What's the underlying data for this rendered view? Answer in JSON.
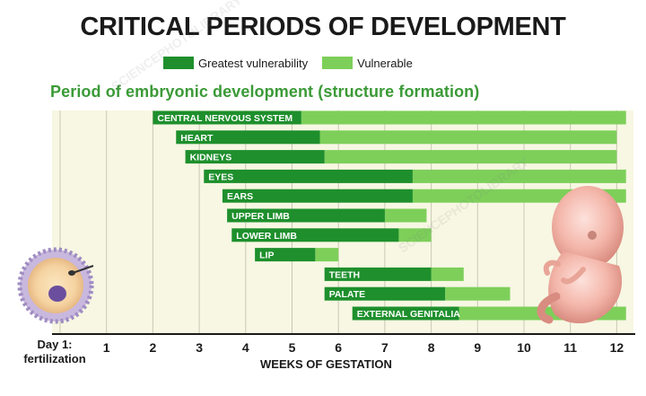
{
  "title": "CRITICAL PERIODS OF DEVELOPMENT",
  "legend": {
    "greatest": "Greatest vulnerability",
    "vulnerable": "Vulnerable"
  },
  "subtitle": "Period of embryonic development (structure formation)",
  "day1_line1": "Day 1:",
  "day1_line2": "fertilization",
  "colors": {
    "dark": "#1e8f2c",
    "light": "#7dcf5a",
    "grid": "#c9c9b4",
    "background": "#f7f7e3",
    "label": "#ffffff"
  },
  "chart_data": {
    "type": "bar",
    "orientation": "horizontal-range",
    "title": "CRITICAL PERIODS OF DEVELOPMENT",
    "subtitle": "Period of embryonic development (structure formation)",
    "xlabel": "WEEKS OF GESTATION",
    "xlim": [
      0,
      12
    ],
    "ticks": [
      "1",
      "2",
      "3",
      "4",
      "5",
      "6",
      "7",
      "8",
      "9",
      "10",
      "11",
      "12"
    ],
    "series": [
      {
        "name": "Greatest vulnerability"
      },
      {
        "name": "Vulnerable"
      }
    ],
    "rows": [
      {
        "label": "CENTRAL NERVOUS SYSTEM",
        "greatest": [
          2.0,
          5.2
        ],
        "vulnerable": [
          5.2,
          12.2
        ]
      },
      {
        "label": "HEART",
        "greatest": [
          2.5,
          5.6
        ],
        "vulnerable": [
          5.6,
          12.0
        ]
      },
      {
        "label": "KIDNEYS",
        "greatest": [
          2.7,
          5.7
        ],
        "vulnerable": [
          5.7,
          12.0
        ]
      },
      {
        "label": "EYES",
        "greatest": [
          3.1,
          7.6
        ],
        "vulnerable": [
          7.6,
          12.2
        ]
      },
      {
        "label": "EARS",
        "greatest": [
          3.5,
          7.6
        ],
        "vulnerable": [
          7.6,
          12.2
        ]
      },
      {
        "label": "UPPER LIMB",
        "greatest": [
          3.6,
          7.0
        ],
        "vulnerable": [
          7.0,
          7.9
        ]
      },
      {
        "label": "LOWER LIMB",
        "greatest": [
          3.7,
          7.3
        ],
        "vulnerable": [
          7.3,
          8.0
        ]
      },
      {
        "label": "LIP",
        "greatest": [
          4.2,
          5.5
        ],
        "vulnerable": [
          5.5,
          6.0
        ]
      },
      {
        "label": "TEETH",
        "greatest": [
          5.7,
          8.0
        ],
        "vulnerable": [
          8.0,
          8.7
        ]
      },
      {
        "label": "PALATE",
        "greatest": [
          5.7,
          8.3
        ],
        "vulnerable": [
          8.3,
          9.7
        ]
      },
      {
        "label": "EXTERNAL GENITALIA",
        "greatest": [
          6.3,
          8.6
        ],
        "vulnerable": [
          8.6,
          12.2
        ]
      }
    ]
  }
}
